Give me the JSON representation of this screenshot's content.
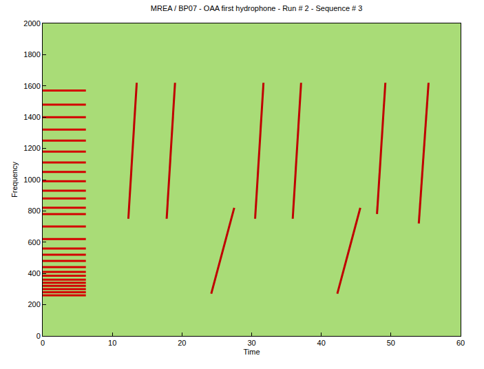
{
  "chart_data": {
    "type": "line",
    "title": "MREA / BP07 - OAA first hydrophone - Run # 2 - Sequence # 3",
    "x_label": "Time",
    "y_label": "Frequency",
    "xlim": [
      0,
      60
    ],
    "xticks": [
      0,
      10,
      20,
      30,
      40,
      50,
      60
    ],
    "ylim": [
      0,
      2000
    ],
    "yticks": [
      0,
      200,
      400,
      600,
      800,
      1000,
      1200,
      1400,
      1600,
      1800,
      2000
    ],
    "grid": false,
    "series": [
      {
        "color": "#c00000",
        "x": [
          12.3,
          13.5,
          null,
          17.8,
          19.0,
          null,
          30.5,
          31.7,
          null,
          35.9,
          37.1,
          null,
          48.0,
          49.2,
          null,
          54.0,
          55.4,
          null,
          24.2,
          27.5,
          null,
          42.3,
          45.6
        ],
        "values": [
          750,
          1620,
          null,
          750,
          1620,
          null,
          750,
          1620,
          null,
          750,
          1620,
          null,
          780,
          1620,
          null,
          720,
          1620,
          null,
          270,
          820,
          null,
          270,
          820
        ]
      },
      {
        "color": "#d40000",
        "x": [
          0,
          6.2,
          null,
          0,
          6.2,
          null,
          0,
          6.2,
          null,
          0,
          6.2,
          null,
          0,
          6.2,
          null,
          0,
          6.2,
          null,
          0,
          6.2,
          null,
          0,
          6.2,
          null,
          0,
          6.2,
          null,
          0,
          6.2,
          null,
          0,
          6.2,
          null,
          0,
          6.2,
          null,
          0,
          6.2,
          null,
          0,
          6.2,
          null,
          0,
          6.2,
          null,
          0,
          6.2,
          null,
          0,
          6.2,
          null,
          0,
          6.2,
          null,
          0,
          6.2,
          null,
          0,
          6.2,
          null,
          0,
          6.2,
          null,
          0,
          6.2,
          null,
          0,
          6.2,
          null,
          0,
          6.2,
          null,
          0,
          6.2,
          null,
          0,
          6.2,
          null,
          0,
          6.2
        ],
        "values": [
          260,
          260,
          null,
          280,
          280,
          null,
          300,
          300,
          null,
          320,
          320,
          null,
          340,
          340,
          null,
          360,
          360,
          null,
          385,
          385,
          null,
          410,
          410,
          null,
          440,
          440,
          null,
          480,
          480,
          null,
          520,
          520,
          null,
          560,
          560,
          null,
          620,
          620,
          null,
          700,
          700,
          null,
          780,
          780,
          null,
          820,
          820,
          null,
          880,
          880,
          null,
          930,
          930,
          null,
          990,
          990,
          null,
          1050,
          1050,
          null,
          1110,
          1110,
          null,
          1180,
          1180,
          null,
          1250,
          1250,
          null,
          1320,
          1320,
          null,
          1400,
          1400,
          null,
          1480,
          1480,
          null,
          1570,
          1570
        ]
      }
    ]
  }
}
